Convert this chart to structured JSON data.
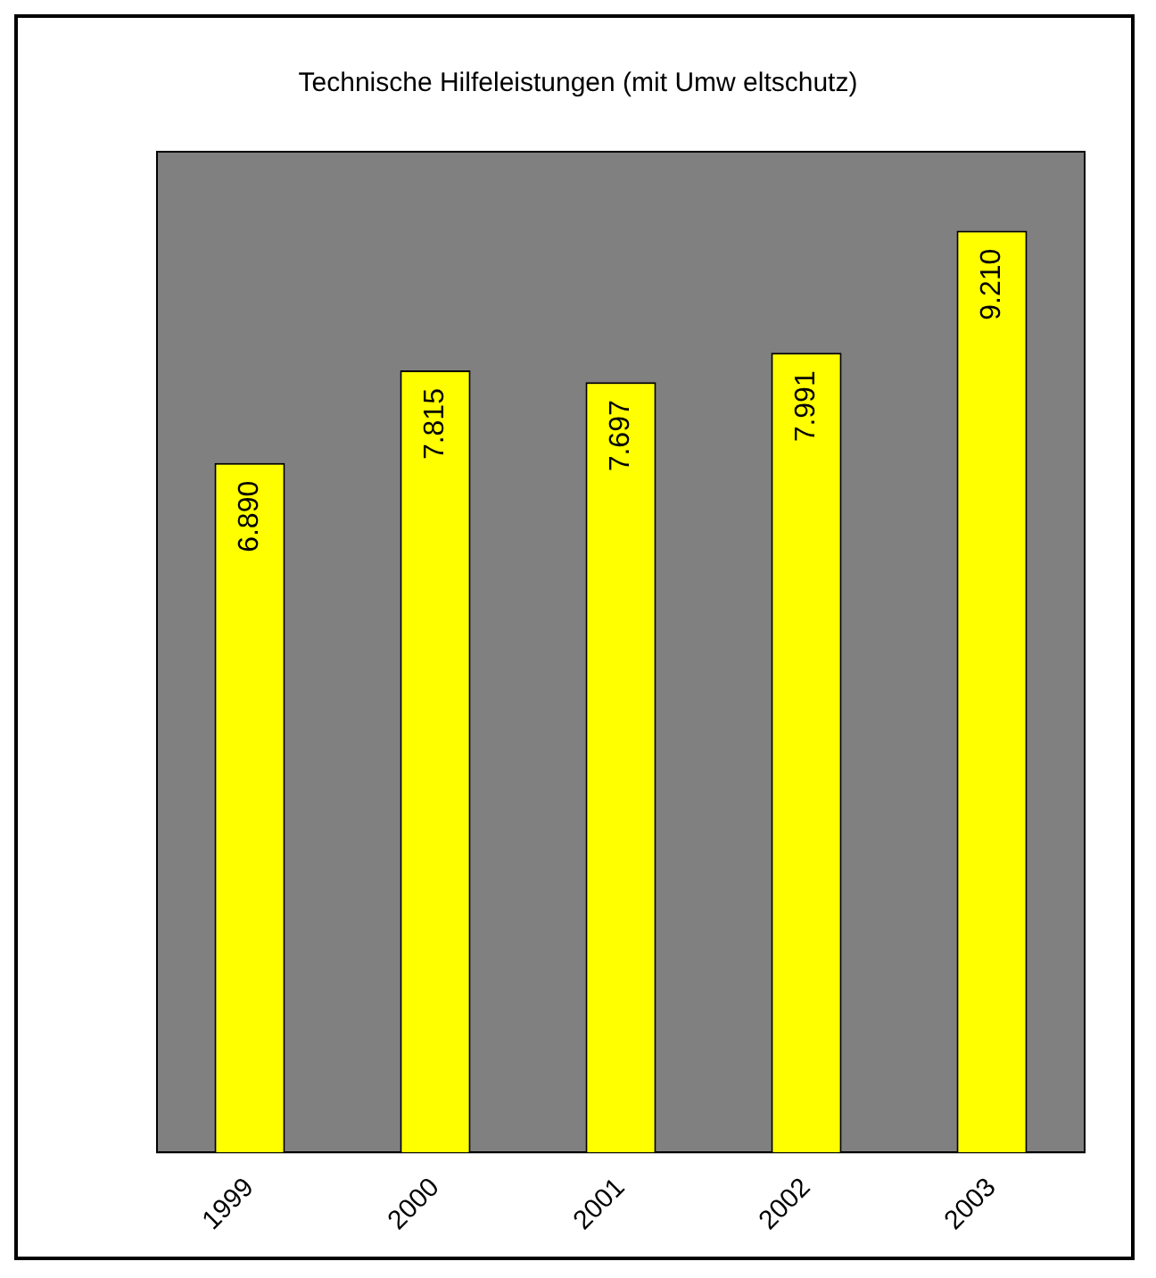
{
  "chart_data": {
    "type": "bar",
    "title": "Technische Hilfeleistungen (mit Umw eltschutz)",
    "categories": [
      "1999",
      "2000",
      "2001",
      "2002",
      "2003"
    ],
    "values": [
      6890,
      7815,
      7697,
      7991,
      9210
    ],
    "value_labels": [
      "6.890",
      "7.815",
      "7.697",
      "7.991",
      "9.210"
    ],
    "color": "#ffff00",
    "ylim": [
      0,
      10000
    ],
    "tick_labels": "x",
    "grid": false,
    "legend": false
  }
}
